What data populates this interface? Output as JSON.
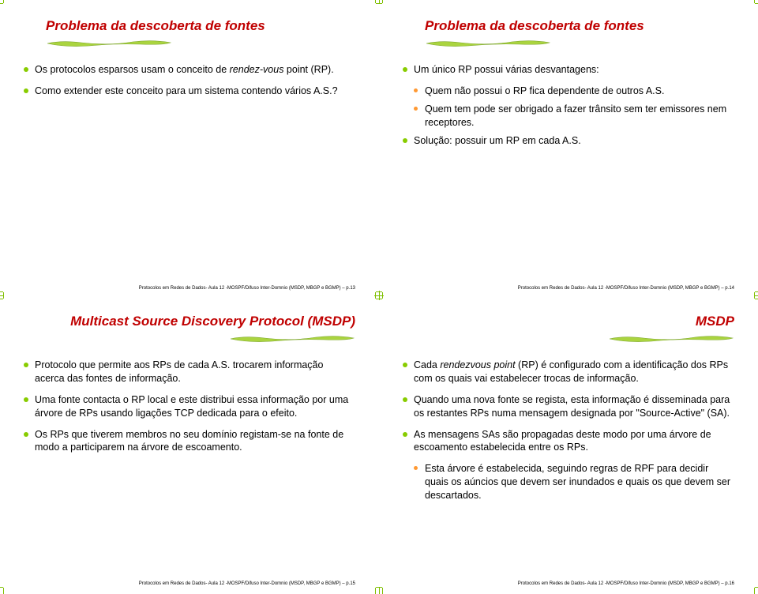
{
  "colors": {
    "title": "#c00000",
    "bullet1": "#88cc00",
    "bullet2": "#ff9933",
    "crop": "#7fbf00",
    "text": "#000000",
    "underline_fill": "#aad43f",
    "underline_stroke": "#7fa82e"
  },
  "typography": {
    "title_fontsize": 17,
    "body_fontsize": 12.5,
    "footer_fontsize": 6,
    "title_style": "bold italic"
  },
  "slides": [
    {
      "title": "Problema da descoberta de fontes",
      "title_align": "left",
      "bullets": [
        {
          "level": 1,
          "html": "Os protocolos esparsos usam o conceito de <i>rendez-vous</i> point (RP)."
        },
        {
          "level": 1,
          "text": "Como extender este conceito para um sistema contendo vários A.S.?"
        }
      ],
      "footer": "Protocolos em Redes de Dados- Aula 12 -MOSPF/Difuso Inter-Domnio (MSDP, MBGP e BGMP) – p.13"
    },
    {
      "title": "Problema da descoberta de fontes",
      "title_align": "left",
      "bullets": [
        {
          "level": 1,
          "text": "Um único RP possui várias desvantagens:"
        },
        {
          "level": 2,
          "text": "Quem não possui o RP fica dependente de outros A.S."
        },
        {
          "level": 2,
          "text": "Quem tem pode ser obrigado a fazer trânsito sem ter emissores nem receptores."
        },
        {
          "level": 1,
          "text": "Solução: possuir um RP em cada A.S."
        }
      ],
      "footer": "Protocolos em Redes de Dados- Aula 12 -MOSPF/Difuso Inter-Domnio (MSDP, MBGP e BGMP) – p.14"
    },
    {
      "title": "Multicast Source Discovery Protocol (MSDP)",
      "title_align": "right",
      "bullets": [
        {
          "level": 1,
          "text": "Protocolo que permite aos RPs de cada A.S. trocarem informação acerca das fontes de informação."
        },
        {
          "level": 1,
          "text": "Uma fonte contacta o RP local e este distribui essa informação por uma árvore de RPs usando ligações TCP dedicada para o efeito."
        },
        {
          "level": 1,
          "text": "Os RPs que tiverem membros no seu domínio registam-se na fonte de modo a participarem na árvore de escoamento."
        }
      ],
      "footer": "Protocolos em Redes de Dados- Aula 12 -MOSPF/Difuso Inter-Domnio (MSDP, MBGP e BGMP) – p.15"
    },
    {
      "title": "MSDP",
      "title_align": "right",
      "bullets": [
        {
          "level": 1,
          "html": "Cada <i>rendezvous point</i> (RP) é configurado com a identificação dos RPs com os quais vai estabelecer trocas de informação."
        },
        {
          "level": 1,
          "text": "Quando uma nova fonte se regista, esta informação é disseminada para os restantes RPs numa mensagem designada por \"Source-Active\" (SA)."
        },
        {
          "level": 1,
          "text": "As mensagens SAs são propagadas deste modo por uma árvore de escoamento estabelecida entre os RPs."
        },
        {
          "level": 2,
          "text": "Esta árvore é estabelecida, seguindo regras de RPF para decidir quais os aúncios que devem ser inundados e quais os que devem ser descartados."
        }
      ],
      "footer": "Protocolos em Redes de Dados- Aula 12 -MOSPF/Difuso Inter-Domnio (MSDP, MBGP e BGMP) – p.16"
    }
  ]
}
